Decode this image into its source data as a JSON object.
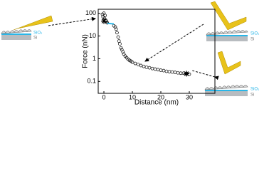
{
  "chart_data": {
    "type": "scatter",
    "x_label": "Distance (nm)",
    "y_label": "Force (nN)",
    "xlim": [
      -2,
      39
    ],
    "ylim": [
      0.03,
      150
    ],
    "log_y": true,
    "xticks": [
      0,
      10,
      20,
      30
    ],
    "yticks": [
      0.1,
      1,
      10,
      100
    ],
    "series": [
      {
        "color": "#000000",
        "marker": "circle",
        "x": [
          -0.5,
          -0.3,
          0,
          0.2,
          0.4,
          0.6,
          0.8,
          1.0,
          1.2,
          3.5,
          4.0,
          4.3,
          4.6,
          5.0,
          5.3,
          5.6,
          6.0,
          6.3,
          6.7,
          7.0,
          7.5,
          8,
          8.5,
          9,
          9.5,
          10,
          11,
          12,
          13,
          14,
          15,
          16,
          17,
          18,
          19,
          20,
          21,
          22,
          23,
          24,
          25,
          26,
          27,
          28,
          29,
          30
        ],
        "values": [
          90,
          70,
          100,
          60,
          80,
          50,
          45,
          40,
          38,
          28,
          25,
          20,
          14,
          9,
          6,
          4.5,
          3,
          2.5,
          2,
          1.6,
          1.3,
          1.1,
          0.95,
          0.85,
          0.78,
          0.7,
          0.62,
          0.56,
          0.5,
          0.46,
          0.42,
          0.4,
          0.37,
          0.35,
          0.33,
          0.31,
          0.3,
          0.28,
          0.27,
          0.26,
          0.25,
          0.24,
          0.23,
          0.23,
          0.22,
          0.21
        ]
      },
      {
        "color": "#29b6e8",
        "marker": "line",
        "x": [
          1.2,
          3.5
        ],
        "values": [
          36,
          34
        ]
      },
      {
        "color": "#000000",
        "marker": "star",
        "x": [
          0,
          29
        ],
        "values": [
          45,
          0.22
        ]
      }
    ]
  },
  "schematics": [
    {
      "sio2": "SiO₂",
      "si": "Si"
    },
    {
      "sio2": "SiO₂",
      "si": "Si"
    },
    {
      "sio2": "SiO₂",
      "si": "Si"
    }
  ]
}
